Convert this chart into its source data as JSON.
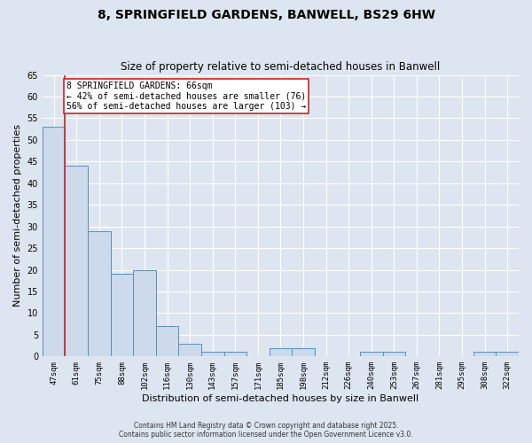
{
  "title": "8, SPRINGFIELD GARDENS, BANWELL, BS29 6HW",
  "subtitle": "Size of property relative to semi-detached houses in Banwell",
  "xlabel": "Distribution of semi-detached houses by size in Banwell",
  "ylabel": "Number of semi-detached properties",
  "bin_labels": [
    "47sqm",
    "61sqm",
    "75sqm",
    "88sqm",
    "102sqm",
    "116sqm",
    "130sqm",
    "143sqm",
    "157sqm",
    "171sqm",
    "185sqm",
    "198sqm",
    "212sqm",
    "226sqm",
    "240sqm",
    "253sqm",
    "267sqm",
    "281sqm",
    "295sqm",
    "308sqm",
    "322sqm"
  ],
  "bar_values": [
    53,
    44,
    29,
    19,
    20,
    7,
    3,
    1,
    1,
    0,
    2,
    2,
    0,
    0,
    1,
    1,
    0,
    0,
    0,
    1,
    1
  ],
  "bar_color": "#ccdaeb",
  "bar_edge_color": "#5b8db8",
  "red_line_index": 1,
  "property_label": "8 SPRINGFIELD GARDENS: 66sqm",
  "annotation_line1": "← 42% of semi-detached houses are smaller (76)",
  "annotation_line2": "56% of semi-detached houses are larger (103) →",
  "annotation_box_color": "#ffffff",
  "annotation_box_edge": "#cc2222",
  "red_line_color": "#cc2222",
  "ylim": [
    0,
    65
  ],
  "yticks": [
    0,
    5,
    10,
    15,
    20,
    25,
    30,
    35,
    40,
    45,
    50,
    55,
    60,
    65
  ],
  "background_color": "#dde6f0",
  "grid_color": "#ffffff",
  "footer_line1": "Contains HM Land Registry data © Crown copyright and database right 2025.",
  "footer_line2": "Contains public sector information licensed under the Open Government Licence v3.0.",
  "title_fontsize": 10,
  "subtitle_fontsize": 8.5,
  "footer_fontsize": 5.5
}
